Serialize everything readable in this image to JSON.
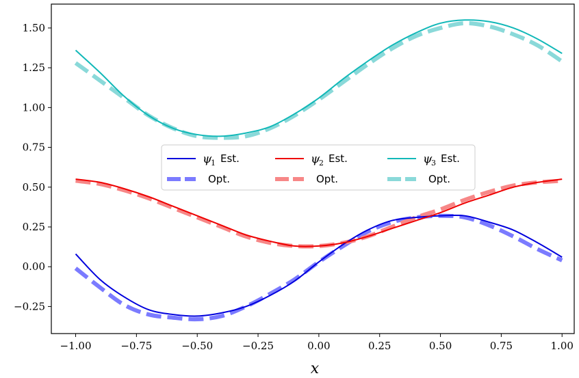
{
  "chart_data": {
    "type": "line",
    "xlabel": "x",
    "ylabel": "",
    "xlim": [
      -1.1,
      1.05
    ],
    "ylim": [
      -0.42,
      1.65
    ],
    "xticks": [
      -1.0,
      -0.75,
      -0.5,
      -0.25,
      0.0,
      0.25,
      0.5,
      0.75,
      1.0
    ],
    "xtick_labels": [
      "−1.00",
      "−0.75",
      "−0.50",
      "−0.25",
      "0.00",
      "0.25",
      "0.50",
      "0.75",
      "1.00"
    ],
    "yticks": [
      -0.25,
      0.0,
      0.25,
      0.5,
      0.75,
      1.0,
      1.25,
      1.5
    ],
    "ytick_labels": [
      "−0.25",
      "0.00",
      "0.25",
      "0.50",
      "0.75",
      "1.00",
      "1.25",
      "1.50"
    ],
    "grid": false,
    "legend_placement": "center-left",
    "x": [
      -1.0,
      -0.9,
      -0.8,
      -0.7,
      -0.6,
      -0.5,
      -0.4,
      -0.3,
      -0.2,
      -0.1,
      0.0,
      0.1,
      0.2,
      0.3,
      0.4,
      0.5,
      0.6,
      0.7,
      0.8,
      0.9,
      1.0
    ],
    "series": [
      {
        "legend_symbol": "ψ",
        "legend_sub": "1",
        "legend_text": "Est.",
        "color": "#0000dd",
        "style": "solid",
        "values": [
          0.08,
          -0.08,
          -0.19,
          -0.27,
          -0.3,
          -0.31,
          -0.29,
          -0.25,
          -0.18,
          -0.09,
          0.03,
          0.14,
          0.23,
          0.29,
          0.31,
          0.32,
          0.32,
          0.28,
          0.23,
          0.15,
          0.06
        ]
      },
      {
        "legend_symbol": "",
        "legend_sub": "",
        "legend_text": "Opt.",
        "color": "#7b7bff",
        "style": "dashed",
        "values": [
          -0.01,
          -0.13,
          -0.24,
          -0.3,
          -0.32,
          -0.33,
          -0.31,
          -0.25,
          -0.17,
          -0.08,
          0.03,
          0.13,
          0.22,
          0.28,
          0.31,
          0.32,
          0.31,
          0.26,
          0.19,
          0.11,
          0.04
        ]
      },
      {
        "legend_symbol": "ψ",
        "legend_sub": "2",
        "legend_text": "Est.",
        "color": "#ee0000",
        "style": "solid",
        "values": [
          0.55,
          0.53,
          0.49,
          0.44,
          0.38,
          0.32,
          0.26,
          0.2,
          0.16,
          0.13,
          0.13,
          0.15,
          0.19,
          0.24,
          0.29,
          0.34,
          0.4,
          0.45,
          0.5,
          0.53,
          0.55
        ]
      },
      {
        "legend_symbol": "",
        "legend_sub": "",
        "legend_text": "Opt.",
        "color": "#f78787",
        "style": "dashed",
        "values": [
          0.54,
          0.52,
          0.48,
          0.43,
          0.37,
          0.31,
          0.25,
          0.19,
          0.15,
          0.13,
          0.13,
          0.15,
          0.19,
          0.25,
          0.31,
          0.36,
          0.42,
          0.47,
          0.51,
          0.53,
          0.54
        ]
      },
      {
        "legend_symbol": "ψ",
        "legend_sub": "3",
        "legend_text": "Est.",
        "color": "#11b8b8",
        "style": "solid",
        "values": [
          1.36,
          1.22,
          1.07,
          0.95,
          0.87,
          0.83,
          0.82,
          0.84,
          0.88,
          0.96,
          1.06,
          1.18,
          1.29,
          1.39,
          1.47,
          1.53,
          1.55,
          1.54,
          1.5,
          1.43,
          1.34
        ]
      },
      {
        "legend_symbol": "",
        "legend_sub": "",
        "legend_text": "Opt.",
        "color": "#8ad9d9",
        "style": "dashed",
        "values": [
          1.28,
          1.17,
          1.06,
          0.95,
          0.87,
          0.82,
          0.81,
          0.82,
          0.87,
          0.95,
          1.05,
          1.16,
          1.27,
          1.37,
          1.45,
          1.5,
          1.53,
          1.51,
          1.46,
          1.39,
          1.29
        ]
      }
    ]
  }
}
